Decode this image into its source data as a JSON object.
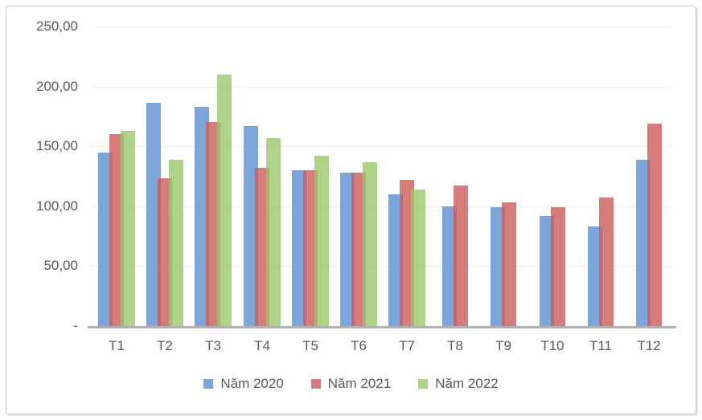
{
  "chart_data": {
    "type": "bar",
    "title": "",
    "xlabel": "",
    "ylabel": "",
    "ylim": [
      0,
      250
    ],
    "grid": true,
    "legend_position": "bottom",
    "categories": [
      "T1",
      "T2",
      "T3",
      "T4",
      "T5",
      "T6",
      "T7",
      "T8",
      "T9",
      "T10",
      "T11",
      "T12"
    ],
    "series": [
      {
        "name": "Năm 2020",
        "color": "#5B8FD0",
        "values": [
          145,
          186,
          183,
          167,
          130,
          128,
          110,
          100,
          99,
          92,
          83,
          139
        ]
      },
      {
        "name": "Năm 2021",
        "color": "#C95D59",
        "values": [
          160,
          123,
          170,
          132,
          130,
          128,
          122,
          117,
          103,
          99,
          107,
          169
        ]
      },
      {
        "name": "Năm 2022",
        "color": "#9BC76C",
        "values": [
          163,
          139,
          210,
          157,
          142,
          137,
          114,
          null,
          null,
          null,
          null,
          null
        ]
      }
    ],
    "y_ticks": [
      {
        "value": 250,
        "label": "250,00"
      },
      {
        "value": 200,
        "label": "200,00"
      },
      {
        "value": 150,
        "label": "150,00"
      },
      {
        "value": 100,
        "label": "100,00"
      },
      {
        "value": 50,
        "label": "50,00"
      },
      {
        "value": 0,
        "label": "-"
      }
    ]
  },
  "colors": {
    "axis_text": "#595959",
    "gridline": "#ededed",
    "axis_line": "#b0b0b0",
    "frame_border": "#c6c6c6"
  }
}
